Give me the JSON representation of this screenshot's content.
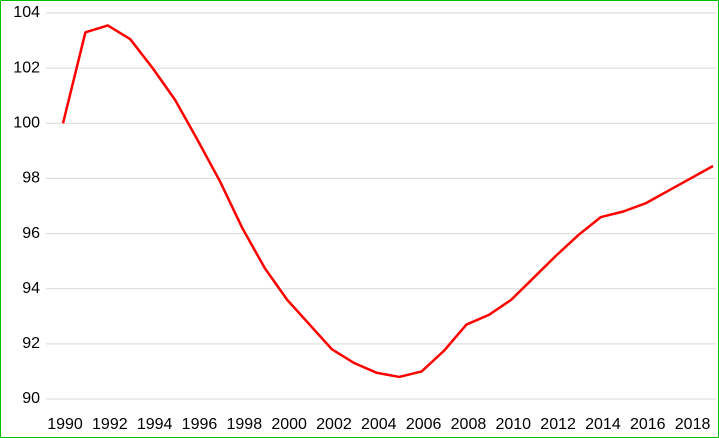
{
  "chart_data": {
    "type": "line",
    "x": [
      1990,
      1991,
      1992,
      1993,
      1994,
      1995,
      1996,
      1997,
      1998,
      1999,
      2000,
      2001,
      2002,
      2003,
      2004,
      2005,
      2006,
      2007,
      2008,
      2009,
      2010,
      2011,
      2012,
      2013,
      2014,
      2015,
      2016,
      2017,
      2018,
      2019
    ],
    "series": [
      {
        "color": "#ff0000",
        "values": [
          100.0,
          103.3,
          103.55,
          103.05,
          102.0,
          100.85,
          99.4,
          97.9,
          96.2,
          94.75,
          93.6,
          92.7,
          91.8,
          91.3,
          90.95,
          90.8,
          91.0,
          91.75,
          92.7,
          93.05,
          93.6,
          94.4,
          95.2,
          95.95,
          96.6,
          96.8,
          97.1,
          97.55,
          98.0,
          98.45
        ]
      }
    ],
    "xlim": [
      1990,
      2019
    ],
    "xticks": [
      1990,
      1992,
      1994,
      1996,
      1998,
      2000,
      2002,
      2004,
      2006,
      2008,
      2010,
      2012,
      2014,
      2016,
      2018
    ],
    "ylim": [
      90,
      104
    ],
    "yticks": [
      90,
      92,
      94,
      96,
      98,
      100,
      102,
      104
    ],
    "grid": true
  }
}
